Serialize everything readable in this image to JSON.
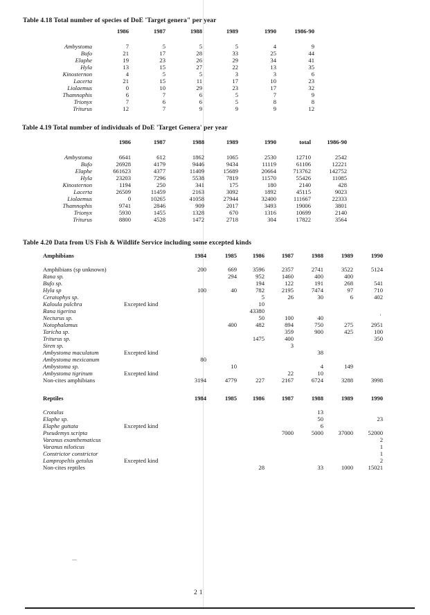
{
  "page": {
    "page_number": "21"
  },
  "table_418": {
    "title": "Table 4.18 Total number of species of DoE 'Target genera\" per year",
    "columns": [
      "1986",
      "1987",
      "1988",
      "1989",
      "1990",
      "1986-90"
    ],
    "rows": [
      {
        "name": "Ambystoma",
        "values": [
          "7",
          "5",
          "5",
          "5",
          "4",
          "9"
        ]
      },
      {
        "name": "Bufo",
        "values": [
          "21",
          "17",
          "28",
          "33",
          "25",
          "44"
        ]
      },
      {
        "name": "Elaphe",
        "values": [
          "19",
          "23",
          "26",
          "29",
          "34",
          "41"
        ]
      },
      {
        "name": "Hyla",
        "values": [
          "13",
          "15",
          "27",
          "22",
          "13",
          "35"
        ]
      },
      {
        "name": "Kinosternon",
        "values": [
          "4",
          "5",
          "5",
          "3",
          "3",
          "6"
        ]
      },
      {
        "name": "Lacerta",
        "values": [
          "21",
          "15",
          "11",
          "17",
          "10",
          "23"
        ]
      },
      {
        "name": "Liolaemus",
        "values": [
          "0",
          "10",
          "29",
          "23",
          "17",
          "32"
        ]
      },
      {
        "name": "Thamnophis",
        "values": [
          "6",
          "7",
          "6",
          "5",
          "7",
          "9"
        ]
      },
      {
        "name": "Trionyx",
        "values": [
          "7",
          "6",
          "6",
          "5",
          "8",
          "8"
        ]
      },
      {
        "name": "Triturus",
        "values": [
          "12",
          "7",
          "9",
          "9",
          "9",
          "12"
        ]
      }
    ]
  },
  "table_419": {
    "title": "Table 4.19  Total number of individuals of DoE 'Target Genera' per year",
    "columns": [
      "1986",
      "1987",
      "1988",
      "1989",
      "1990",
      "total",
      "1986-90"
    ],
    "rows": [
      {
        "name": "Ambystoma",
        "values": [
          "6641",
          "612",
          "1862",
          "1065",
          "2530",
          "12710",
          "2542"
        ]
      },
      {
        "name": "Bufo",
        "values": [
          "26928",
          "4179",
          "9446",
          "9434",
          "11119",
          "61106",
          "12221"
        ]
      },
      {
        "name": "Elaphe",
        "values": [
          "661623",
          "4377",
          "11409",
          "15689",
          "20664",
          "713762",
          "142752"
        ]
      },
      {
        "name": "Hyla",
        "values": [
          "23203",
          "7296",
          "5538",
          "7819",
          "11570",
          "55426",
          "11085"
        ]
      },
      {
        "name": "Kinosternon",
        "values": [
          "1194",
          "250",
          "341",
          "175",
          "180",
          "2140",
          "428"
        ]
      },
      {
        "name": "Lacerta",
        "values": [
          "26509",
          "11459",
          "2163",
          "3092",
          "1892",
          "45115",
          "9023"
        ]
      },
      {
        "name": "Liolaemus",
        "values": [
          "0",
          "10265",
          "41058",
          "27944",
          "32400",
          "111667",
          "22333"
        ]
      },
      {
        "name": "Thamnophis",
        "values": [
          "9741",
          "2846",
          "909",
          "2017",
          "3493",
          "19006",
          "3801"
        ]
      },
      {
        "name": "Trionyx",
        "values": [
          "5930",
          "1455",
          "1328",
          "670",
          "1316",
          "10699",
          "2140"
        ]
      },
      {
        "name": "Triturus",
        "values": [
          "8800",
          "4528",
          "1472",
          "2718",
          "304",
          "17822",
          "3564"
        ]
      }
    ]
  },
  "table_420": {
    "title": "Table 4.20  Data from US Fish & Wildlife Service including some excepted kinds",
    "years": [
      "1984",
      "1985",
      "1986",
      "1987",
      "1988",
      "1989",
      "1990"
    ],
    "sections": [
      {
        "header": "Amphibians",
        "rows": [
          {
            "name": "Amphibians (sp unknown)",
            "roman": true,
            "note": "",
            "values": [
              "200",
              "669",
              "3596",
              "2357",
              "2741",
              "3522",
              "5124"
            ]
          },
          {
            "name": "Rana sp.",
            "note": "",
            "values": [
              "",
              "294",
              "952",
              "1460",
              "400",
              "400",
              ""
            ]
          },
          {
            "name": "Bufo sp.",
            "note": "",
            "values": [
              "",
              "",
              "194",
              "122",
              "191",
              "268",
              "541"
            ]
          },
          {
            "name": "Hyla sp",
            "note": "",
            "values": [
              "100",
              "40",
              "782",
              "2195",
              "7474",
              "97",
              "710"
            ]
          },
          {
            "name": "Ceratophys sp.",
            "note": "",
            "values": [
              "",
              "",
              "5",
              "26",
              "30",
              "6",
              "402"
            ]
          },
          {
            "name": "Kaloula pulchra",
            "note": "Excepted kind",
            "values": [
              "",
              "",
              "10",
              "",
              "",
              "",
              ""
            ]
          },
          {
            "name": "Rana tigerina",
            "note": "",
            "values": [
              "",
              "",
              "43380",
              "",
              "",
              "",
              ""
            ]
          },
          {
            "name": "Necturus sp.",
            "note": "",
            "values": [
              "",
              "",
              "50",
              "100",
              "40",
              "",
              ""
            ]
          },
          {
            "name": "Notophalamus",
            "note": "",
            "values": [
              "",
              "400",
              "482",
              "894",
              "750",
              "275",
              "2951"
            ]
          },
          {
            "name": "Taricha sp.",
            "note": "",
            "values": [
              "",
              "",
              "",
              "359",
              "900",
              "425",
              "100"
            ]
          },
          {
            "name": "Triturus sp.",
            "note": "",
            "values": [
              "",
              "",
              "1475",
              "400",
              "",
              "",
              "350"
            ]
          },
          {
            "name": "Siren sp.",
            "note": "",
            "values": [
              "",
              "",
              "",
              "3",
              "",
              "",
              ""
            ]
          },
          {
            "name": "Ambystoma maculatum",
            "note": "Excepted kind",
            "values": [
              "",
              "",
              "",
              "",
              "38",
              "",
              ""
            ]
          },
          {
            "name": "Ambystoma mexicanum",
            "note": "",
            "values": [
              "80",
              "",
              "",
              "",
              "",
              "",
              ""
            ]
          },
          {
            "name": "Ambystoma sp.",
            "note": "",
            "values": [
              "",
              "10",
              "",
              "",
              "4",
              "149",
              ""
            ]
          },
          {
            "name": "Ambystoma tigrinum",
            "note": "Excepted kind",
            "values": [
              "",
              "",
              "",
              "22",
              "10",
              "",
              ""
            ]
          },
          {
            "name": "Non-cites amphibians",
            "roman": true,
            "note": "",
            "values": [
              "3194",
              "4779",
              "227",
              "2167",
              "6724",
              "3288",
              "3998"
            ]
          }
        ]
      },
      {
        "header": "Reptiles",
        "rows": [
          {
            "name": "Crotalus",
            "note": "",
            "values": [
              "",
              "",
              "",
              "",
              "13",
              "",
              ""
            ]
          },
          {
            "name": "Elaphe sp.",
            "note": "",
            "values": [
              "",
              "",
              "",
              "",
              "50",
              "",
              "23"
            ]
          },
          {
            "name": "Elaphe guttata",
            "note": "Excepted kind",
            "values": [
              "",
              "",
              "",
              "",
              "6",
              "",
              ""
            ]
          },
          {
            "name": "Pseudemys scripta",
            "note": "",
            "values": [
              "",
              "",
              "",
              "7000",
              "5000",
              "37000",
              "52000"
            ]
          },
          {
            "name": "Varanus exanthematicus",
            "note": "",
            "values": [
              "",
              "",
              "",
              "",
              "",
              "",
              "2"
            ]
          },
          {
            "name": "Varanus niloticus",
            "note": "",
            "values": [
              "",
              "",
              "",
              "",
              "",
              "",
              "1"
            ]
          },
          {
            "name": "Constrictor constrictor",
            "note": "",
            "values": [
              "",
              "",
              "",
              "",
              "",
              "",
              "1"
            ]
          },
          {
            "name": "Lampropeltis getulus",
            "note": "Excepted kind",
            "values": [
              "",
              "",
              "",
              "",
              "",
              "",
              "2"
            ]
          },
          {
            "name": "Non-cites reptiles",
            "roman": true,
            "note": "",
            "values": [
              "",
              "",
              "28",
              "",
              "33",
              "1000",
              "15021"
            ]
          }
        ]
      }
    ]
  }
}
